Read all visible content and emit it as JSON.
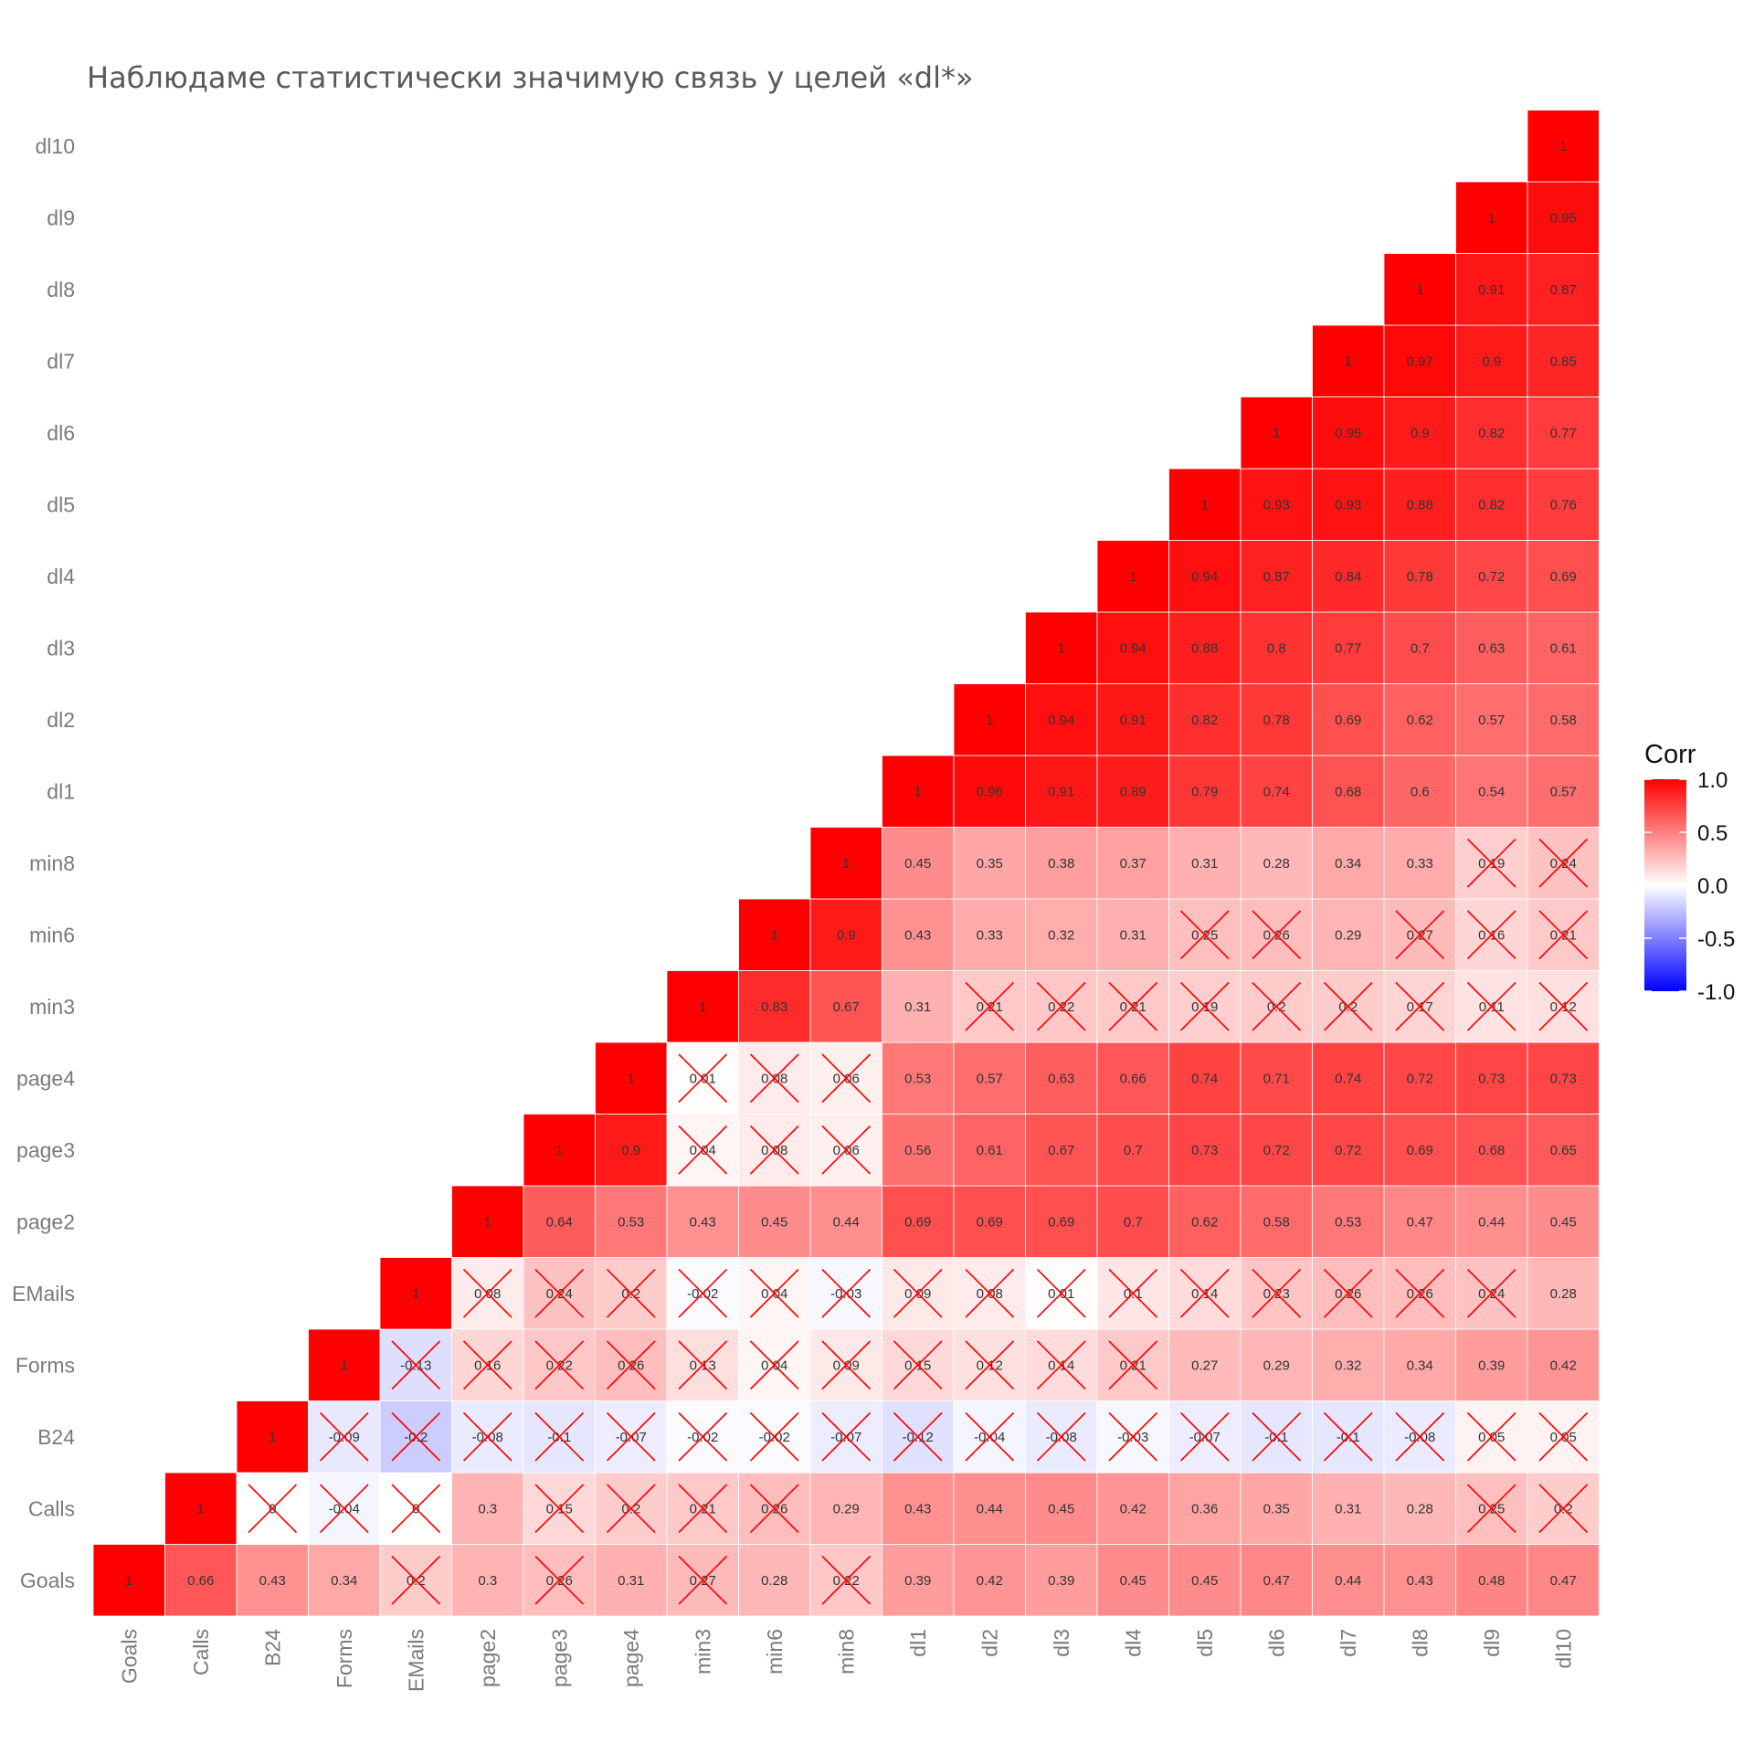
{
  "chart_data": {
    "type": "heatmap",
    "title": "Наблюдаме статистически значимую связь у целей «dl*»",
    "variables": [
      "Goals",
      "Calls",
      "B24",
      "Forms",
      "EMails",
      "page2",
      "page3",
      "page4",
      "min3",
      "min6",
      "min8",
      "dl1",
      "dl2",
      "dl3",
      "dl4",
      "dl5",
      "dl6",
      "dl7",
      "dl8",
      "dl9",
      "dl10"
    ],
    "matrix": {
      "Goals": [
        "1",
        "0.66",
        "0.43",
        "0.34",
        "0.2",
        "0.3",
        "0.26",
        "0.31",
        "0.27",
        "0.28",
        "0.22",
        "0.39",
        "0.42",
        "0.39",
        "0.45",
        "0.45",
        "0.47",
        "0.44",
        "0.43",
        "0.48",
        "0.47"
      ],
      "Calls": [
        "",
        "1",
        "0",
        "-0.04",
        "0",
        "0.3",
        "0.15",
        "0.2",
        "0.21",
        "0.26",
        "0.29",
        "0.43",
        "0.44",
        "0.45",
        "0.42",
        "0.36",
        "0.35",
        "0.31",
        "0.28",
        "0.25",
        "0.2"
      ],
      "B24": [
        "",
        "",
        "1",
        "-0.09",
        "-0.2",
        "-0.08",
        "-0.1",
        "-0.07",
        "-0.02",
        "-0.02",
        "-0.07",
        "-0.12",
        "-0.04",
        "-0.08",
        "-0.03",
        "-0.07",
        "-0.1",
        "-0.1",
        "-0.08",
        "0.05",
        "0.05"
      ],
      "Forms": [
        "",
        "",
        "",
        "1",
        "-0.13",
        "0.16",
        "0.22",
        "0.26",
        "0.13",
        "0.04",
        "0.09",
        "0.15",
        "0.12",
        "0.14",
        "0.21",
        "0.27",
        "0.29",
        "0.32",
        "0.34",
        "0.39",
        "0.42"
      ],
      "EMails": [
        "",
        "",
        "",
        "",
        "1",
        "0.08",
        "0.24",
        "0.2",
        "-0.02",
        "0.04",
        "-0.03",
        "0.09",
        "0.08",
        "0.01",
        "0.1",
        "0.14",
        "0.23",
        "0.26",
        "0.26",
        "0.24",
        "0.28"
      ],
      "page2": [
        "",
        "",
        "",
        "",
        "",
        "1",
        "0.64",
        "0.53",
        "0.43",
        "0.45",
        "0.44",
        "0.69",
        "0.69",
        "0.69",
        "0.7",
        "0.62",
        "0.58",
        "0.53",
        "0.47",
        "0.44",
        "0.45"
      ],
      "page3": [
        "",
        "",
        "",
        "",
        "",
        "",
        "1",
        "0.9",
        "0.04",
        "0.08",
        "0.06",
        "0.56",
        "0.61",
        "0.67",
        "0.7",
        "0.73",
        "0.72",
        "0.72",
        "0.69",
        "0.68",
        "0.65"
      ],
      "page4": [
        "",
        "",
        "",
        "",
        "",
        "",
        "",
        "1",
        "0.01",
        "0.08",
        "0.06",
        "0.53",
        "0.57",
        "0.63",
        "0.66",
        "0.74",
        "0.71",
        "0.74",
        "0.72",
        "0.73",
        "0.73"
      ],
      "min3": [
        "",
        "",
        "",
        "",
        "",
        "",
        "",
        "",
        "1",
        "0.83",
        "0.67",
        "0.31",
        "0.21",
        "0.22",
        "0.21",
        "0.19",
        "0.2",
        "0.2",
        "0.17",
        "0.11",
        "0.12"
      ],
      "min6": [
        "",
        "",
        "",
        "",
        "",
        "",
        "",
        "",
        "",
        "1",
        "0.9",
        "0.43",
        "0.33",
        "0.32",
        "0.31",
        "0.25",
        "0.26",
        "0.29",
        "0.27",
        "0.16",
        "0.21"
      ],
      "min8": [
        "",
        "",
        "",
        "",
        "",
        "",
        "",
        "",
        "",
        "",
        "1",
        "0.45",
        "0.35",
        "0.38",
        "0.37",
        "0.31",
        "0.28",
        "0.34",
        "0.33",
        "0.19",
        "0.24"
      ],
      "dl1": [
        "",
        "",
        "",
        "",
        "",
        "",
        "",
        "",
        "",
        "",
        "",
        "1",
        "0.96",
        "0.91",
        "0.89",
        "0.79",
        "0.74",
        "0.68",
        "0.6",
        "0.54",
        "0.57"
      ],
      "dl2": [
        "",
        "",
        "",
        "",
        "",
        "",
        "",
        "",
        "",
        "",
        "",
        "",
        "1",
        "0.94",
        "0.91",
        "0.82",
        "0.78",
        "0.69",
        "0.62",
        "0.57",
        "0.58"
      ],
      "dl3": [
        "",
        "",
        "",
        "",
        "",
        "",
        "",
        "",
        "",
        "",
        "",
        "",
        "",
        "1",
        "0.94",
        "0.88",
        "0.8",
        "0.77",
        "0.7",
        "0.63",
        "0.61"
      ],
      "dl4": [
        "",
        "",
        "",
        "",
        "",
        "",
        "",
        "",
        "",
        "",
        "",
        "",
        "",
        "",
        "1",
        "0.94",
        "0.87",
        "0.84",
        "0.78",
        "0.72",
        "0.69"
      ],
      "dl5": [
        "",
        "",
        "",
        "",
        "",
        "",
        "",
        "",
        "",
        "",
        "",
        "",
        "",
        "",
        "",
        "1",
        "0.93",
        "0.93",
        "0.88",
        "0.82",
        "0.76"
      ],
      "dl6": [
        "",
        "",
        "",
        "",
        "",
        "",
        "",
        "",
        "",
        "",
        "",
        "",
        "",
        "",
        "",
        "",
        "1",
        "0.95",
        "0.9",
        "0.82",
        "0.77"
      ],
      "dl7": [
        "",
        "",
        "",
        "",
        "",
        "",
        "",
        "",
        "",
        "",
        "",
        "",
        "",
        "",
        "",
        "",
        "",
        "1",
        "0.97",
        "0.9",
        "0.85"
      ],
      "dl8": [
        "",
        "",
        "",
        "",
        "",
        "",
        "",
        "",
        "",
        "",
        "",
        "",
        "",
        "",
        "",
        "",
        "",
        "",
        "1",
        "0.91",
        "0.87"
      ],
      "dl9": [
        "",
        "",
        "",
        "",
        "",
        "",
        "",
        "",
        "",
        "",
        "",
        "",
        "",
        "",
        "",
        "",
        "",
        "",
        "",
        "1",
        "0.95"
      ],
      "dl10": [
        "",
        "",
        "",
        "",
        "",
        "",
        "",
        "",
        "",
        "",
        "",
        "",
        "",
        "",
        "",
        "",
        "",
        "",
        "",
        "",
        "1"
      ]
    },
    "insignificant": {
      "Goals": [
        "EMails",
        "page3",
        "min3",
        "min8"
      ],
      "Calls": [
        "B24",
        "Forms",
        "EMails",
        "page3",
        "page4",
        "min3",
        "min6",
        "dl9",
        "dl10"
      ],
      "B24": [
        "Forms",
        "EMails",
        "page2",
        "page3",
        "page4",
        "min3",
        "min6",
        "min8",
        "dl1",
        "dl2",
        "dl3",
        "dl4",
        "dl5",
        "dl6",
        "dl7",
        "dl8",
        "dl9",
        "dl10"
      ],
      "Forms": [
        "EMails",
        "page2",
        "page3",
        "page4",
        "min3",
        "min6",
        "min8",
        "dl1",
        "dl2",
        "dl3",
        "dl4"
      ],
      "EMails": [
        "page2",
        "page3",
        "page4",
        "min3",
        "min6",
        "min8",
        "dl1",
        "dl2",
        "dl3",
        "dl4",
        "dl5",
        "dl6",
        "dl7",
        "dl8",
        "dl9"
      ],
      "page3": [
        "min3",
        "min6",
        "min8"
      ],
      "page4": [
        "min3",
        "min6",
        "min8"
      ],
      "min3": [
        "dl2",
        "dl3",
        "dl4",
        "dl5",
        "dl6",
        "dl7",
        "dl8",
        "dl9",
        "dl10"
      ],
      "min6": [
        "dl5",
        "dl6",
        "dl8",
        "dl9",
        "dl10"
      ],
      "min8": [
        "dl9",
        "dl10"
      ]
    },
    "legend": {
      "title": "Corr",
      "ticks": [
        "1.0",
        "0.5",
        "0.0",
        "-0.5",
        "-1.0"
      ],
      "placement": "right",
      "range": [
        -1,
        1
      ]
    },
    "colors": {
      "high": "#ff0000",
      "mid": "#ffffff",
      "low": "#0000ff",
      "cross": "#ff0000"
    },
    "grid": false
  }
}
